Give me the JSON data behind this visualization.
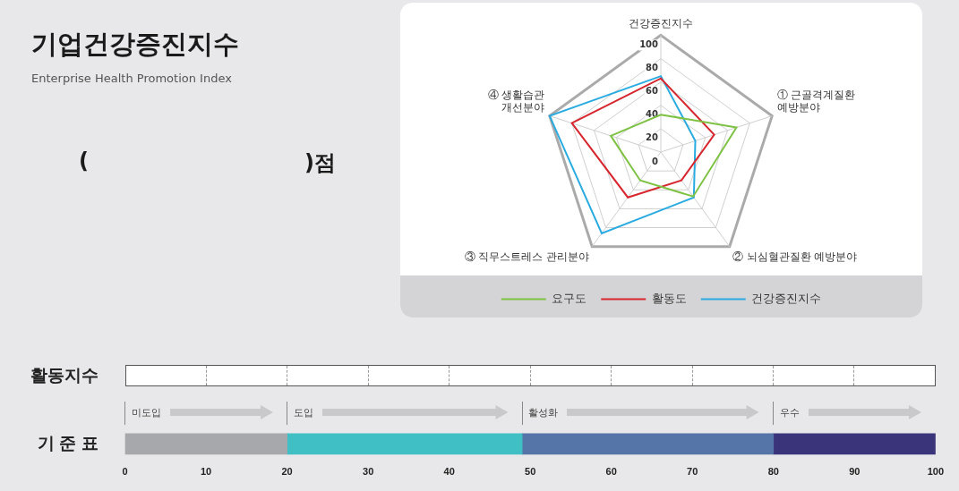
{
  "chart_data": [
    {
      "type": "other",
      "title": "기업건강증진지수",
      "subtitle": "Enterprise Health Promotion Index",
      "annotations": [
        "(",
        ")점"
      ]
    },
    {
      "type": "radar",
      "categories": [
        "건강증진지수",
        "① 근골격계질환 예방분야",
        "② 뇌심혈관질환 예방분야",
        "③ 직무스트레스 관리분야",
        "④ 생활습관 개선분야"
      ],
      "series": [
        {
          "name": "요구도",
          "color": "#7dc242",
          "values": [
            32,
            68,
            47,
            30,
            45
          ]
        },
        {
          "name": "활동도",
          "color": "#d7262e",
          "values": [
            63,
            48,
            30,
            48,
            80
          ]
        },
        {
          "name": "건강증진지수",
          "color": "#29abe2",
          "values": [
            65,
            31,
            48,
            86,
            100
          ]
        }
      ],
      "ylim": [
        0,
        100
      ],
      "yticks": [
        0,
        20,
        40,
        60,
        80,
        100
      ],
      "grid": true,
      "legend": "bottom",
      "marker": "none"
    },
    {
      "type": "bar",
      "orientation": "horizontal",
      "stacked": true,
      "categories": [
        "기 준 표"
      ],
      "series": [
        {
          "name": "미도입",
          "color": "#a7a8ab",
          "values": [
            20
          ]
        },
        {
          "name": "도입",
          "color": "#40bfc5",
          "values": [
            29
          ]
        },
        {
          "name": "활성화",
          "color": "#5574a8",
          "values": [
            31
          ]
        },
        {
          "name": "우수",
          "color": "#3a347a",
          "values": [
            20
          ]
        }
      ],
      "xlim": [
        0,
        100
      ],
      "xticks": [
        0,
        10,
        20,
        30,
        40,
        50,
        60,
        70,
        80,
        90,
        100
      ],
      "grid": false,
      "annotations": [
        "활동지수"
      ]
    }
  ]
}
